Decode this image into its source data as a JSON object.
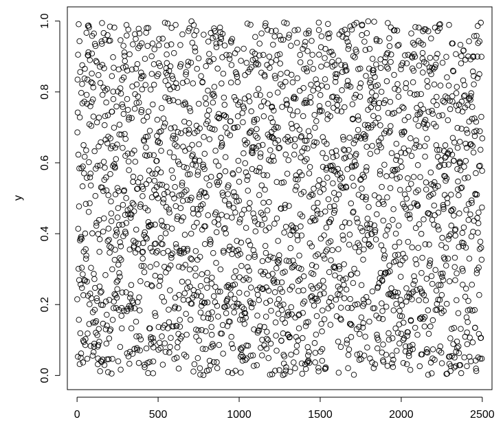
{
  "chart_data": {
    "type": "scatter",
    "title": "",
    "xlabel": "",
    "ylabel": "y",
    "xlim": [
      -60,
      2560
    ],
    "ylim": [
      -0.04,
      1.04
    ],
    "xticks": [
      0,
      500,
      1000,
      1500,
      2000,
      2500
    ],
    "xtick_labels": [
      "0",
      "500",
      "1000",
      "1500",
      "2000",
      "2500"
    ],
    "yticks": [
      0.0,
      0.2,
      0.4,
      0.6,
      0.8,
      1.0
    ],
    "ytick_labels": [
      "0.0",
      "0.2",
      "0.4",
      "0.6",
      "0.8",
      "1.0"
    ],
    "grid": false,
    "marker": "open-circle",
    "color": "#000000",
    "series": [
      {
        "n_points": 2500,
        "x_start": 1,
        "x_step": 1,
        "y_distribution": "uniform(0,1)",
        "y_sample_first": [
          0.215,
          0.686,
          0.835,
          0.742,
          0.053,
          0.905,
          0.414,
          0.623,
          0.301,
          0.991,
          0.157,
          0.477,
          0.269,
          0.584,
          0.943,
          0.032,
          0.728,
          0.381,
          0.856,
          0.119
        ]
      }
    ]
  }
}
